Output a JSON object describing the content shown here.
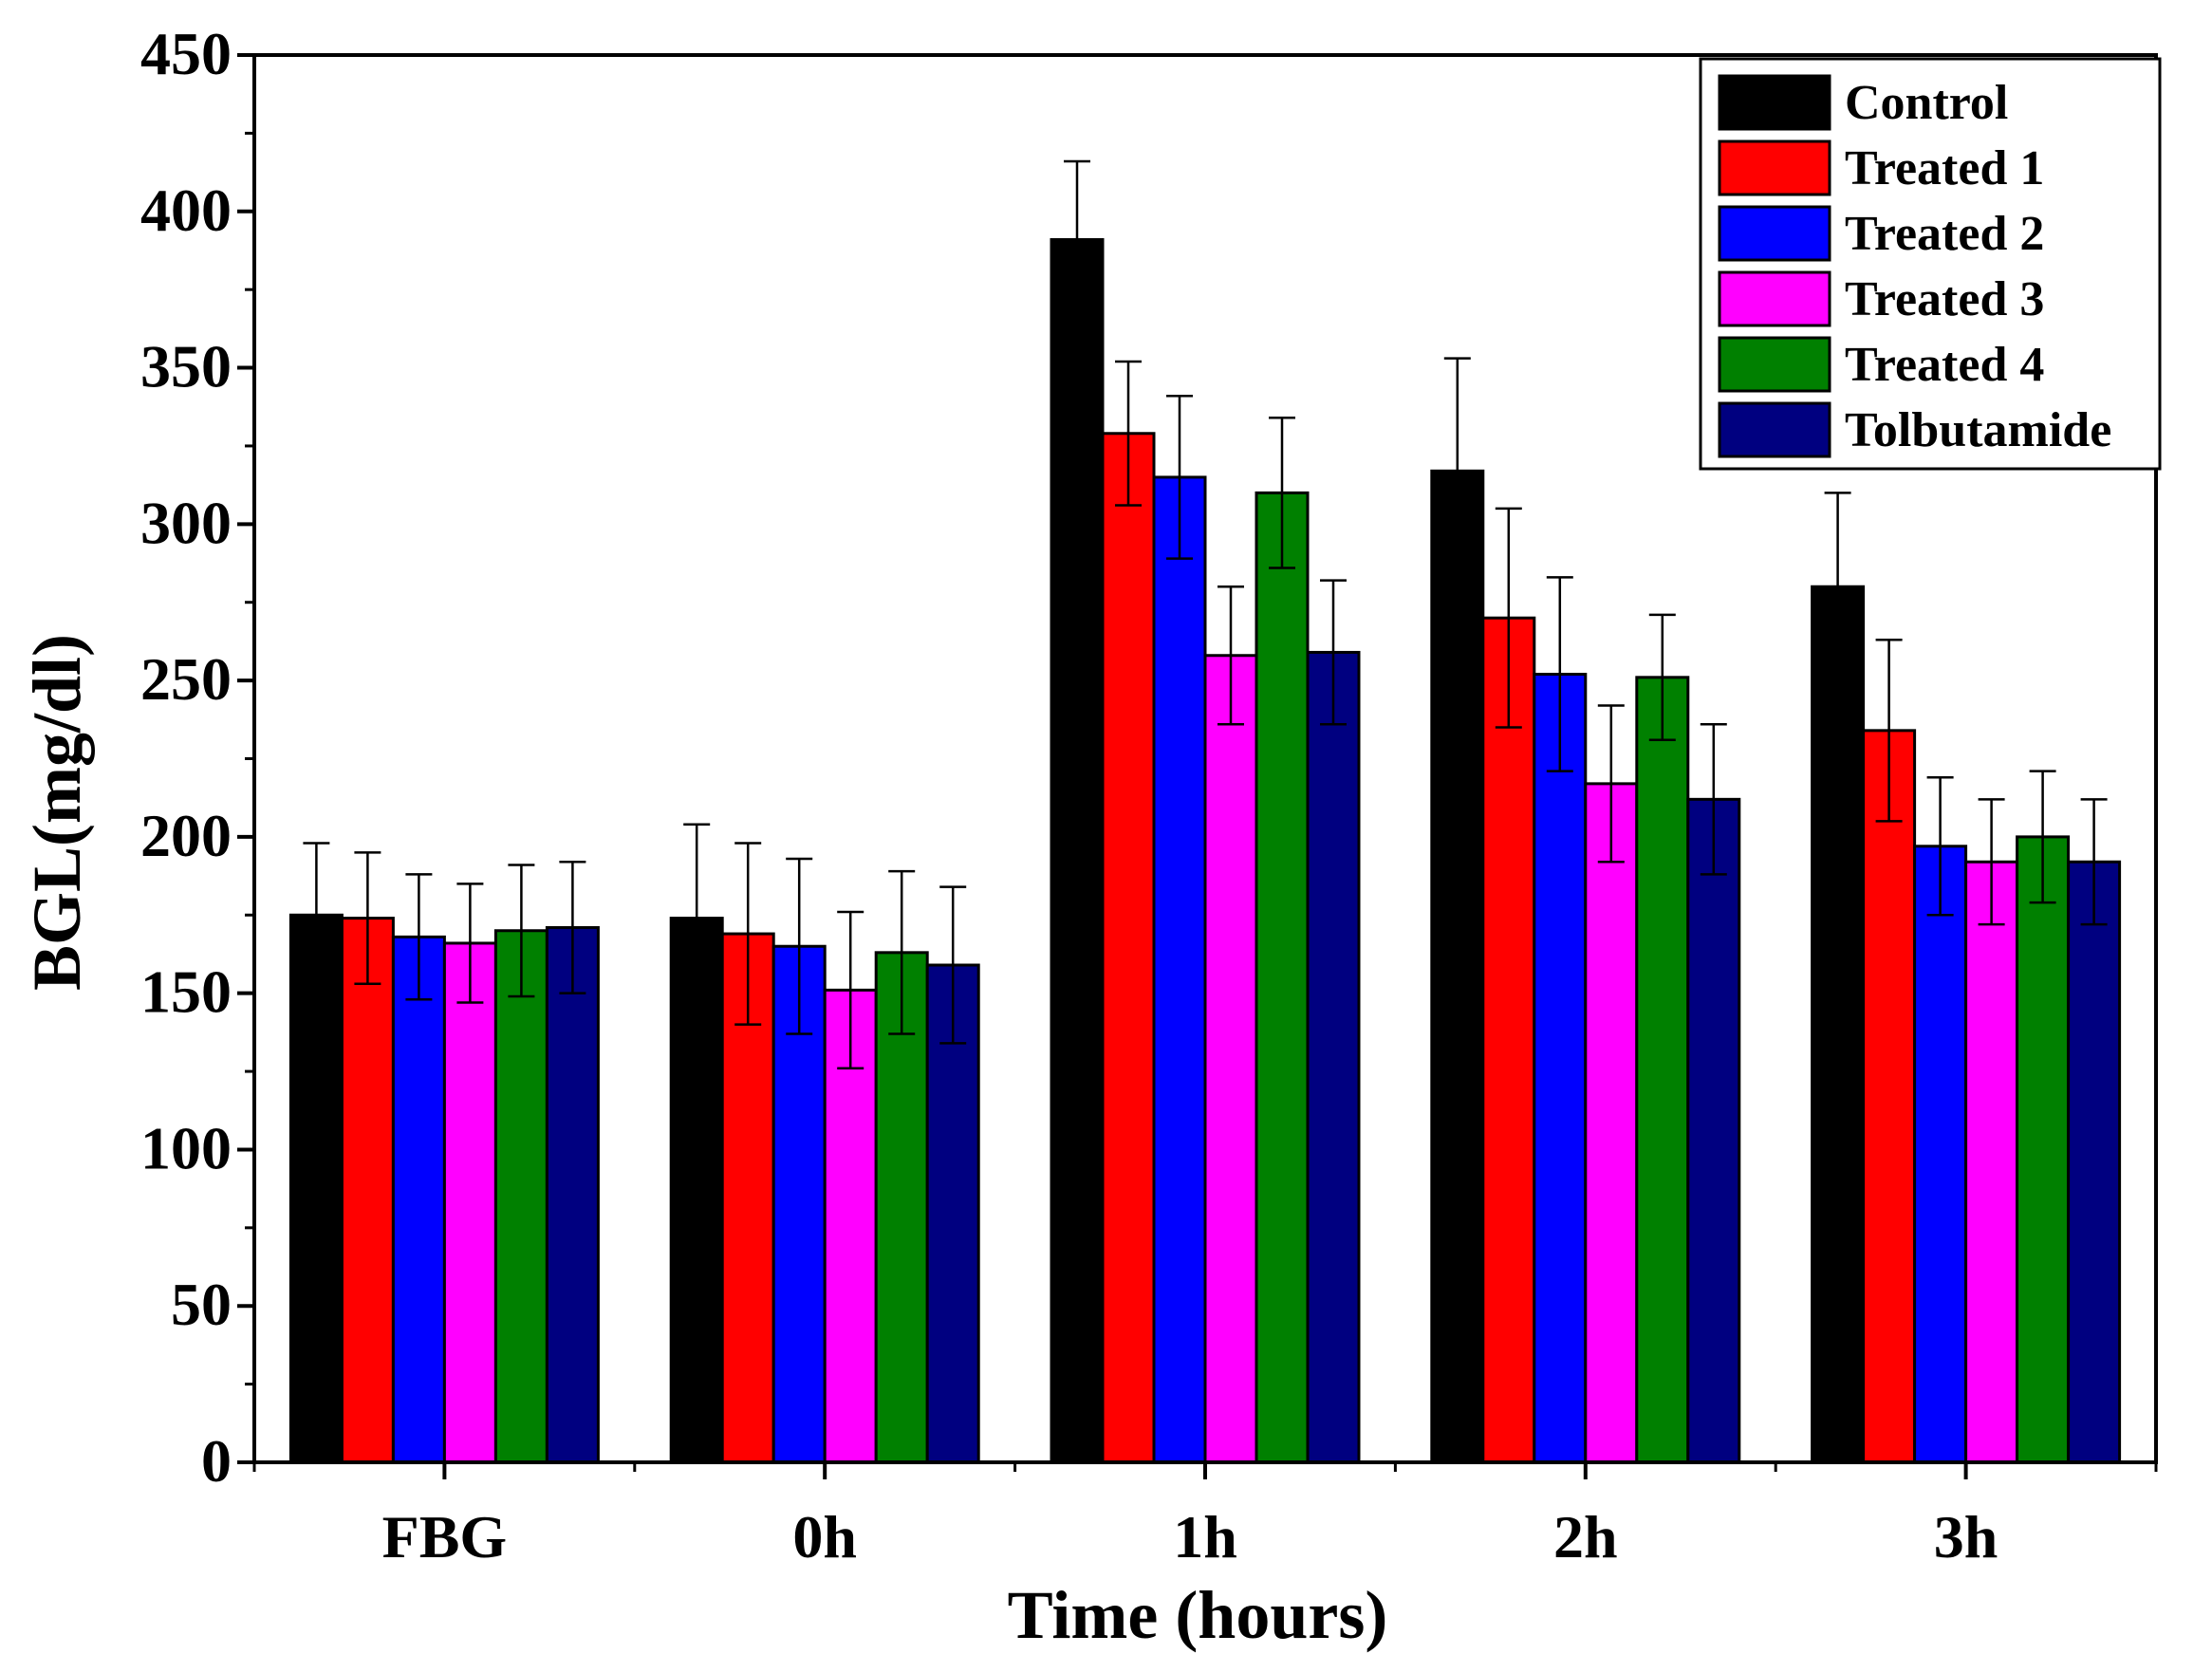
{
  "chart_data": {
    "type": "bar",
    "title": "",
    "xlabel": "Time (hours)",
    "ylabel": "BGL(mg/dl)",
    "categories": [
      "FBG",
      "0h",
      "1h",
      "2h",
      "3h"
    ],
    "ylim": [
      0,
      450
    ],
    "yticks": [
      0,
      50,
      100,
      150,
      200,
      250,
      300,
      350,
      400,
      450
    ],
    "ytick_labels": [
      "0",
      "50",
      "100",
      "150",
      "200",
      "250",
      "300",
      "350",
      "400",
      "450"
    ],
    "grid": false,
    "legend_position": "top-right",
    "error_bars": true,
    "series": [
      {
        "name": "Control",
        "color": "#000000",
        "values": [
          175,
          174,
          391,
          317,
          280
        ],
        "errors": [
          23,
          30,
          25,
          36,
          30
        ]
      },
      {
        "name": "Treated 1",
        "color": "#ff0000",
        "values": [
          174,
          169,
          329,
          270,
          234
        ],
        "errors": [
          21,
          29,
          23,
          35,
          29
        ]
      },
      {
        "name": "Treated 2",
        "color": "#0000ff",
        "values": [
          168,
          165,
          315,
          252,
          197
        ],
        "errors": [
          20,
          28,
          26,
          31,
          22
        ]
      },
      {
        "name": "Treated 3",
        "color": "#ff00ff",
        "values": [
          166,
          151,
          258,
          217,
          192
        ],
        "errors": [
          19,
          25,
          22,
          25,
          20
        ]
      },
      {
        "name": "Treated 4",
        "color": "#008000",
        "values": [
          170,
          163,
          310,
          251,
          200
        ],
        "errors": [
          21,
          26,
          24,
          20,
          21
        ]
      },
      {
        "name": "Tolbutamide",
        "color": "#000080",
        "values": [
          171,
          159,
          259,
          212,
          192
        ],
        "errors": [
          21,
          25,
          23,
          24,
          20
        ]
      }
    ]
  }
}
